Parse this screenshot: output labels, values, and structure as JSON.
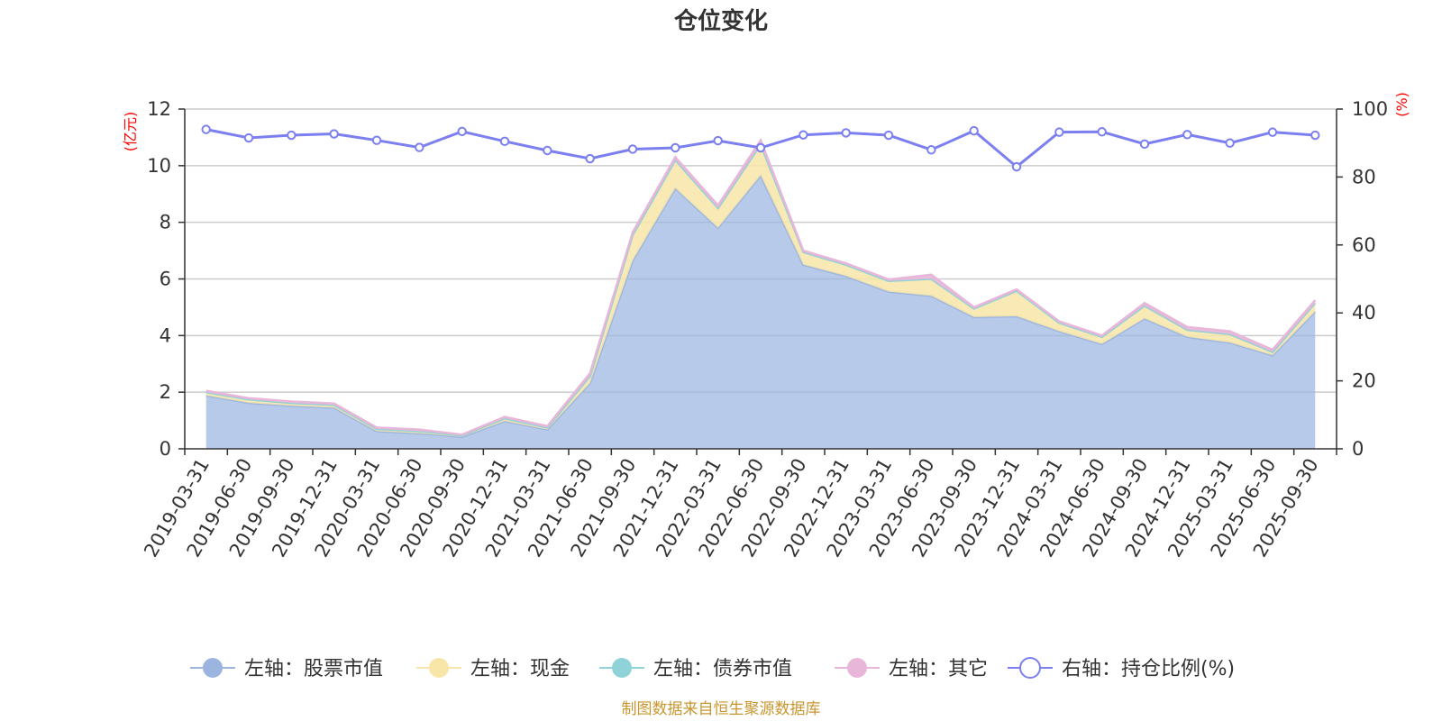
{
  "chart_data": {
    "type": "area",
    "title": "仓位变化",
    "left_axis": {
      "unit": "(亿元)",
      "min": 0,
      "max": 12,
      "ticks": [
        "0",
        "2",
        "4",
        "6",
        "8",
        "10",
        "12"
      ]
    },
    "right_axis": {
      "unit": "(%)",
      "min": 0,
      "max": 100,
      "ticks": [
        "0",
        "20",
        "40",
        "60",
        "80",
        "100"
      ]
    },
    "categories": [
      "2019-03-31",
      "2019-06-30",
      "2019-09-30",
      "2019-12-31",
      "2020-03-31",
      "2020-06-30",
      "2020-09-30",
      "2020-12-31",
      "2021-03-31",
      "2021-06-30",
      "2021-09-30",
      "2021-12-31",
      "2022-03-31",
      "2022-06-30",
      "2022-09-30",
      "2022-12-31",
      "2023-03-31",
      "2023-06-30",
      "2023-09-30",
      "2023-12-31",
      "2024-03-31",
      "2024-06-30",
      "2024-09-30",
      "2024-12-31",
      "2025-03-31",
      "2025-06-30",
      "2025-09-30"
    ],
    "series": [
      {
        "name": "左轴：股票市值",
        "axis": "left",
        "color": "#9bb5e0",
        "values": [
          1.88,
          1.62,
          1.52,
          1.45,
          0.62,
          0.55,
          0.42,
          0.98,
          0.68,
          2.32,
          6.65,
          9.2,
          7.8,
          9.65,
          6.5,
          6.1,
          5.55,
          5.4,
          4.65,
          4.68,
          4.15,
          3.7,
          4.6,
          3.95,
          3.75,
          3.3,
          4.85
        ]
      },
      {
        "name": "左轴：现金",
        "axis": "left",
        "color": "#f8e6a8",
        "values": [
          0.12,
          0.12,
          0.1,
          0.1,
          0.08,
          0.08,
          0.05,
          0.1,
          0.07,
          0.25,
          0.9,
          1.0,
          0.7,
          1.1,
          0.45,
          0.4,
          0.38,
          0.6,
          0.3,
          0.9,
          0.3,
          0.25,
          0.45,
          0.25,
          0.3,
          0.12,
          0.3
        ]
      },
      {
        "name": "左轴：债券市值",
        "axis": "left",
        "color": "#8fd3d8",
        "values": [
          0,
          0,
          0,
          0,
          0,
          0,
          0,
          0,
          0,
          0,
          0,
          0,
          0,
          0,
          0,
          0,
          0,
          0,
          0,
          0,
          0,
          0,
          0,
          0,
          0,
          0,
          0
        ]
      },
      {
        "name": "左轴：其它",
        "axis": "left",
        "color": "#e8b6d8",
        "values": [
          0.05,
          0.05,
          0.05,
          0.05,
          0.05,
          0.05,
          0.03,
          0.05,
          0.05,
          0.1,
          0.1,
          0.1,
          0.1,
          0.15,
          0.05,
          0.05,
          0.05,
          0.15,
          0.05,
          0.05,
          0.05,
          0.05,
          0.1,
          0.1,
          0.1,
          0.08,
          0.1
        ]
      },
      {
        "name": "右轴：持仓比例(%)",
        "axis": "right",
        "color": "#7b7ff0",
        "values": [
          94.0,
          91.5,
          92.3,
          92.7,
          90.8,
          88.7,
          93.4,
          90.5,
          87.8,
          85.4,
          88.2,
          88.6,
          90.7,
          88.6,
          92.4,
          93.0,
          92.3,
          88.0,
          93.6,
          83.0,
          93.2,
          93.3,
          89.7,
          92.5,
          90.0,
          93.2,
          92.3
        ]
      }
    ]
  },
  "source": "制图数据来自恒生聚源数据库"
}
